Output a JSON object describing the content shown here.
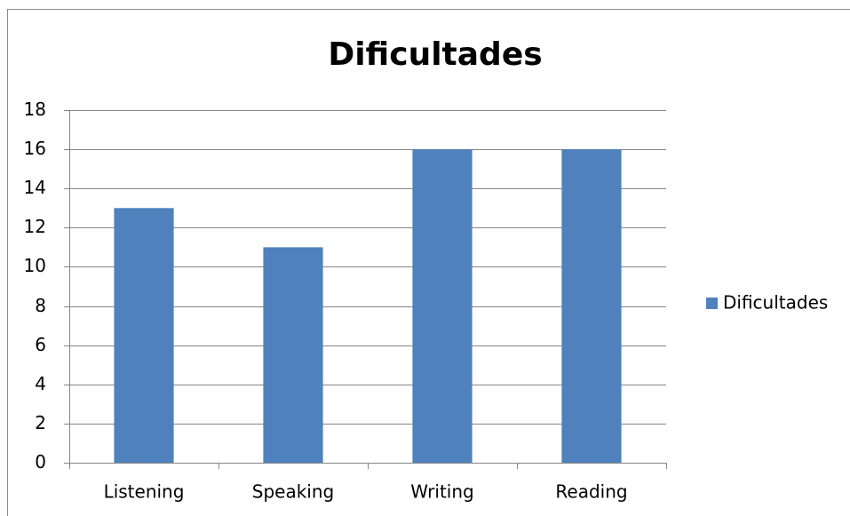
{
  "chart_data": {
    "type": "bar",
    "title": "Dificultades",
    "categories": [
      "Listening",
      "Speaking",
      "Writing",
      "Reading"
    ],
    "series": [
      {
        "name": "Dificultades",
        "color": "#4f81bd",
        "values": [
          13,
          11,
          16,
          16
        ]
      }
    ],
    "ylim": [
      0,
      18
    ],
    "yticks": [
      0,
      2,
      4,
      6,
      8,
      10,
      12,
      14,
      16,
      18
    ],
    "grid": true,
    "legend": "right"
  }
}
